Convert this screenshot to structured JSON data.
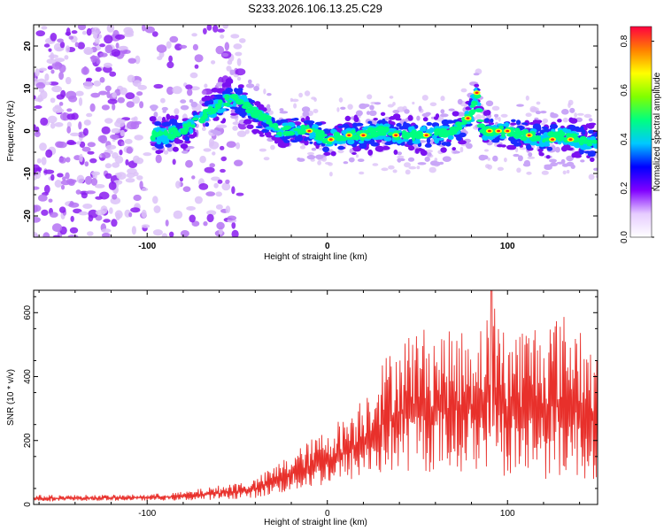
{
  "title": "S233.2026.106.13.25.C29",
  "chart_data": [
    {
      "type": "heatmap",
      "title": "S233.2026.106.13.25.C29",
      "xlabel": "Height of straight line (km)",
      "ylabel": "Frequency (Hz)",
      "xlim": [
        -163,
        150
      ],
      "ylim": [
        -25,
        25
      ],
      "x_ticks": [
        "-100",
        "0",
        "100"
      ],
      "y_ticks": [
        "20",
        "10",
        "0",
        "-10",
        "-20"
      ],
      "colorbar": {
        "label": "Normalized spectral amplitude",
        "range": [
          0.0,
          0.86
        ],
        "ticks": [
          "0.0",
          "0.2",
          "0.4",
          "0.6",
          "0.8"
        ],
        "colors": [
          "#ffffff",
          "#e6ccff",
          "#8000ff",
          "#0000ff",
          "#00c8ff",
          "#00ff80",
          "#80ff00",
          "#ffff00",
          "#ff8000",
          "#ff0040"
        ]
      },
      "ridge": {
        "x": [
          -97,
          -90,
          -80,
          -70,
          -60,
          -52,
          -45,
          -40,
          -35,
          -28,
          -20,
          -10,
          0,
          10,
          20,
          30,
          40,
          50,
          60,
          70,
          76,
          80,
          83,
          86,
          90,
          100,
          110,
          120,
          130,
          140,
          150
        ],
        "y": [
          -1,
          -1,
          0,
          3,
          6,
          8,
          6,
          4,
          3,
          0,
          0,
          0,
          -2,
          -1,
          -1,
          0,
          -1,
          -1,
          -1,
          0,
          2,
          4,
          9,
          0,
          0,
          0,
          -1,
          -2,
          -1,
          -2,
          -3
        ]
      },
      "peak_amplitude": 0.86
    },
    {
      "type": "line",
      "title": "",
      "xlabel": "Height of straight line (km)",
      "ylabel": "SNR (10 * v/v)",
      "xlim": [
        -163,
        150
      ],
      "ylim": [
        0,
        670
      ],
      "x_ticks": [
        "-100",
        "0",
        "100"
      ],
      "y_ticks": [
        "0",
        "200",
        "400",
        "600"
      ],
      "color": "#e8302b",
      "envelope": {
        "x": [
          -163,
          -140,
          -120,
          -100,
          -80,
          -60,
          -40,
          -30,
          -20,
          -10,
          0,
          10,
          20,
          30,
          40,
          50,
          60,
          70,
          80,
          90,
          91,
          95,
          100,
          110,
          120,
          130,
          140,
          150
        ],
        "min": [
          10,
          10,
          12,
          12,
          12,
          15,
          20,
          30,
          40,
          50,
          60,
          70,
          80,
          90,
          100,
          100,
          100,
          100,
          100,
          120,
          200,
          100,
          80,
          80,
          80,
          80,
          80,
          80
        ],
        "max": [
          30,
          30,
          30,
          32,
          40,
          60,
          80,
          120,
          160,
          200,
          240,
          280,
          350,
          450,
          520,
          560,
          550,
          540,
          560,
          600,
          670,
          580,
          560,
          570,
          590,
          600,
          590,
          450
        ]
      },
      "peak": {
        "x": 91,
        "y": 670
      }
    }
  ]
}
